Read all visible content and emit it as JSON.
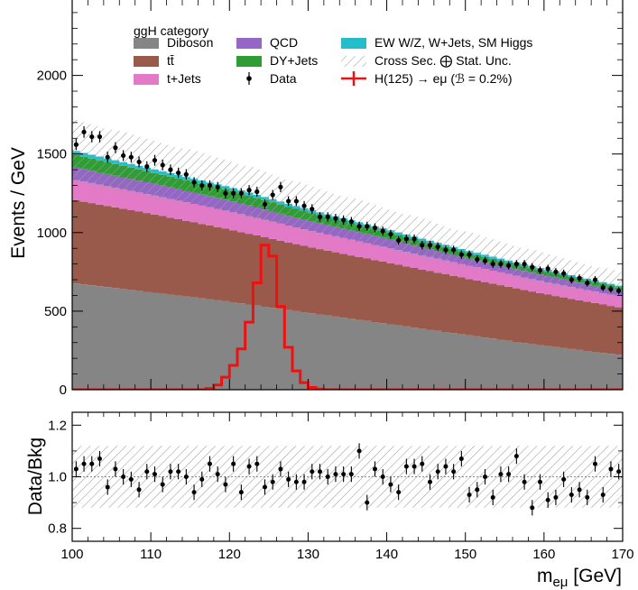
{
  "colors": {
    "diboson": "#858585",
    "ttbar": "#9a5a4b",
    "tjets": "#e27ac8",
    "qcd": "#9466c6",
    "dyjets": "#2e9e34",
    "ew": "#25bccb",
    "signal": "#ee1111",
    "data": "#000000",
    "hatch": "#9c9c9c"
  },
  "chart_data": [
    {
      "type": "area",
      "ylabel": "Events / GeV",
      "xlim": [
        100,
        170
      ],
      "ylim": [
        0,
        2480
      ],
      "yticks": [
        0,
        500,
        1000,
        1500,
        2000
      ],
      "ytick_labels": [
        "0",
        "500",
        "1000",
        "1500",
        "2000"
      ],
      "grid": false,
      "legend_position": "top",
      "legend": {
        "title": "ggH category",
        "entries": [
          {
            "key": "diboson",
            "label": "Diboson",
            "kind": "box"
          },
          {
            "key": "ttbar",
            "label": "tt̄",
            "kind": "box"
          },
          {
            "key": "tjets",
            "label": "t+Jets",
            "kind": "box"
          },
          {
            "key": "qcd",
            "label": "QCD",
            "kind": "box"
          },
          {
            "key": "dyjets",
            "label": "DY+Jets",
            "kind": "box"
          },
          {
            "key": "data",
            "label": "Data",
            "kind": "point"
          },
          {
            "key": "ew",
            "label": "EW W/Z, W+Jets, SM Higgs",
            "kind": "box"
          },
          {
            "key": "unc",
            "label": "Cross Sec. ⨁ Stat. Unc.",
            "kind": "hatch"
          },
          {
            "key": "signal",
            "label": "H(125) → eμ (ℬ = 0.2%)",
            "kind": "cross"
          }
        ]
      },
      "bin_edges": {
        "start": 100,
        "end": 170,
        "width": 1
      },
      "stack_anchors": {
        "x": [
          100,
          110,
          120,
          130,
          140,
          150,
          160,
          170
        ],
        "diboson": [
          680,
          620,
          560,
          490,
          420,
          350,
          280,
          220
        ],
        "ttbar": [
          530,
          500,
          460,
          420,
          390,
          360,
          330,
          300
        ],
        "tjets": [
          130,
          120,
          115,
          105,
          95,
          85,
          78,
          70
        ],
        "qcd": [
          80,
          75,
          70,
          60,
          55,
          45,
          40,
          35
        ],
        "dyjets": [
          80,
          70,
          65,
          55,
          45,
          35,
          28,
          22
        ],
        "ew": [
          25,
          22,
          20,
          18,
          16,
          14,
          12,
          10
        ]
      },
      "uncertainty_fraction": 0.13,
      "signal": {
        "name": "H(125) → eμ (ℬ = 0.2%)",
        "bins": [
          {
            "x": 117,
            "y": 8
          },
          {
            "x": 118,
            "y": 30
          },
          {
            "x": 119,
            "y": 80
          },
          {
            "x": 120,
            "y": 155
          },
          {
            "x": 121,
            "y": 260
          },
          {
            "x": 122,
            "y": 430
          },
          {
            "x": 123,
            "y": 680
          },
          {
            "x": 124,
            "y": 920
          },
          {
            "x": 125,
            "y": 850
          },
          {
            "x": 126,
            "y": 530
          },
          {
            "x": 127,
            "y": 270
          },
          {
            "x": 128,
            "y": 120
          },
          {
            "x": 129,
            "y": 45
          },
          {
            "x": 130,
            "y": 14
          },
          {
            "x": 131,
            "y": 4
          }
        ]
      },
      "data_points": [
        1560,
        1640,
        1610,
        1610,
        1480,
        1540,
        1490,
        1480,
        1450,
        1420,
        1460,
        1430,
        1400,
        1380,
        1370,
        1320,
        1300,
        1300,
        1290,
        1250,
        1250,
        1250,
        1270,
        1260,
        1180,
        1240,
        1290,
        1200,
        1200,
        1170,
        1150,
        1100,
        1100,
        1090,
        1080,
        1070,
        1040,
        1040,
        1030,
        1010,
        990,
        950,
        960,
        960,
        920,
        920,
        910,
        890,
        890,
        860,
        860,
        830,
        820,
        800,
        800,
        790,
        800,
        800,
        780,
        760,
        770,
        750,
        740,
        700,
        710,
        680,
        700,
        650,
        640,
        630
      ]
    },
    {
      "type": "scatter",
      "xlabel": "m_eμ [GeV]",
      "ylabel": "Data/Bkg",
      "xlim": [
        100,
        170
      ],
      "ylim": [
        0.75,
        1.25
      ],
      "xticks": [
        100,
        110,
        120,
        130,
        140,
        150,
        160,
        170
      ],
      "xtick_labels": [
        "100",
        "110",
        "120",
        "130",
        "140",
        "150",
        "160",
        "170"
      ],
      "yticks": [
        0.8,
        1.0,
        1.2
      ],
      "ytick_labels": [
        "0.8",
        "1.0",
        "1.2"
      ],
      "reference_line": 1.0,
      "uncertainty_band": [
        0.88,
        1.12
      ],
      "ratio": [
        1.03,
        1.05,
        1.05,
        1.07,
        0.96,
        1.03,
        1.0,
        0.99,
        0.95,
        1.02,
        1.01,
        0.97,
        1.02,
        1.02,
        1.0,
        0.94,
        0.99,
        1.05,
        1.01,
        0.97,
        1.05,
        0.94,
        1.04,
        1.05,
        0.96,
        0.98,
        1.03,
        0.99,
        0.98,
        0.98,
        1.02,
        1.02,
        1.0,
        1.01,
        1.01,
        1.01,
        1.1,
        0.9,
        1.03,
        1.0,
        0.97,
        0.94,
        1.04,
        1.04,
        1.05,
        0.98,
        1.02,
        1.04,
        1.02,
        1.07,
        0.93,
        0.95,
        1.0,
        0.92,
        1.01,
        1.01,
        1.08,
        0.98,
        0.88,
        0.98,
        0.91,
        0.92,
        0.99,
        0.93,
        0.95,
        0.92,
        1.05,
        0.93,
        1.03,
        1.02
      ]
    }
  ]
}
